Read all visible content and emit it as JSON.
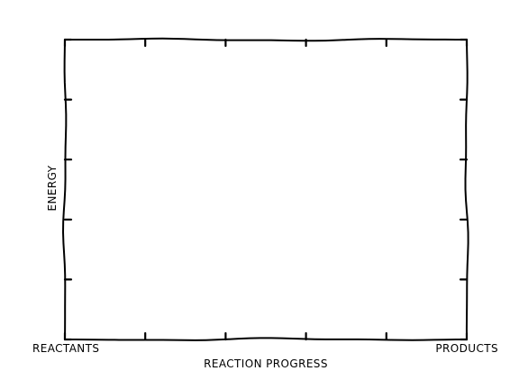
{
  "chart_data": {
    "type": "line",
    "style": "xkcd",
    "title": "",
    "xlabel": "REACTION PROGRESS",
    "ylabel": "ENERGY",
    "x_start_label": "REACTANTS",
    "x_end_label": "PRODUCTS",
    "series": [],
    "x_tick_count": 6,
    "y_tick_count": 6,
    "grid": false
  }
}
